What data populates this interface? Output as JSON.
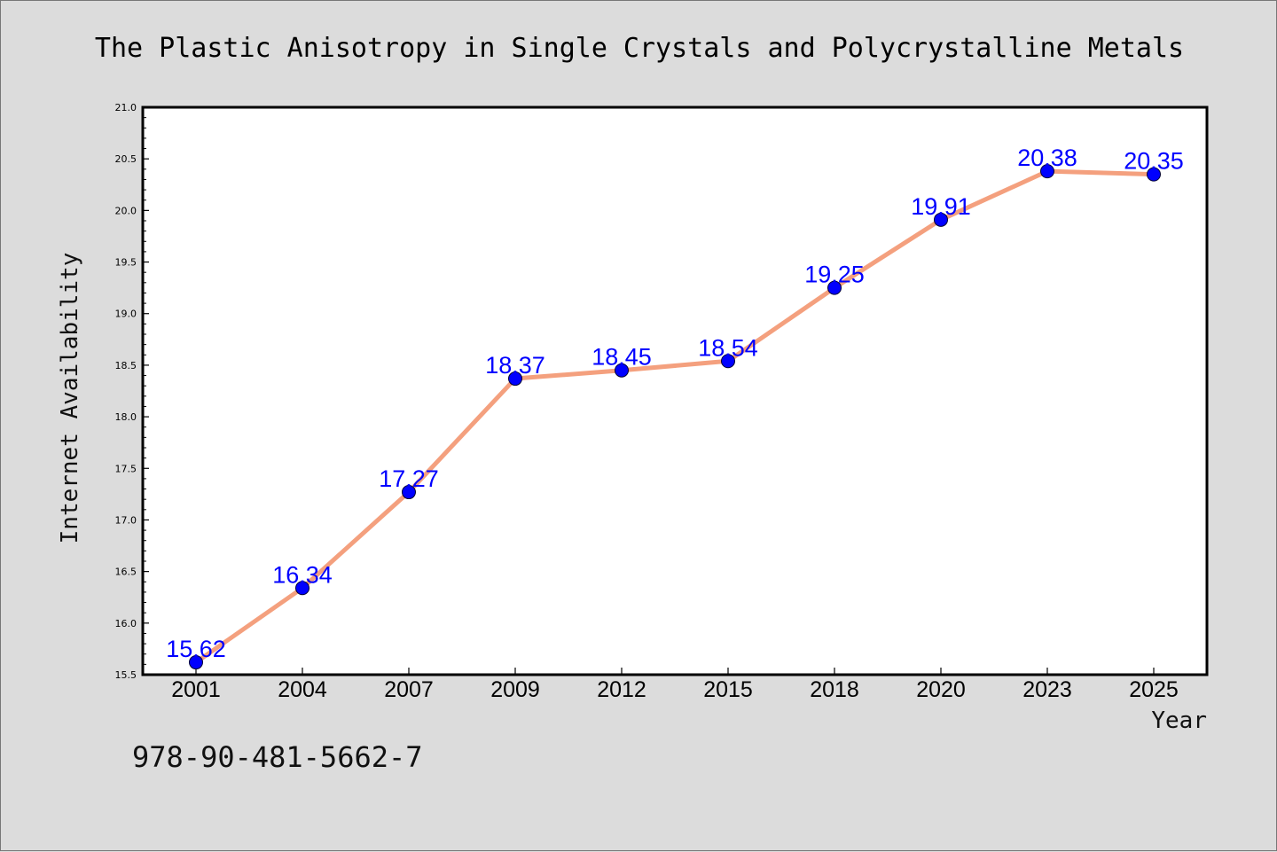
{
  "chart_data": {
    "type": "line",
    "title": "The Plastic Anisotropy in Single Crystals and Polycrystalline Metals",
    "xlabel": "Year",
    "ylabel": "Internet Availability",
    "categories": [
      "2001",
      "2004",
      "2007",
      "2009",
      "2012",
      "2015",
      "2018",
      "2020",
      "2023",
      "2025"
    ],
    "series": [
      {
        "values": [
          15.62,
          16.34,
          17.27,
          18.37,
          18.45,
          18.54,
          19.25,
          19.91,
          20.38,
          20.35
        ],
        "line_color": "#f4a07e",
        "marker_color": "#0000ff"
      }
    ],
    "data_labels": [
      "15.62",
      "16.34",
      "17.27",
      "18.37",
      "18.45",
      "18.54",
      "19.25",
      "19.91",
      "20.38",
      "20.35"
    ],
    "ylim": [
      15.5,
      21.0
    ],
    "yticks": [
      "15.5",
      "16.0",
      "16.5",
      "17.0",
      "17.5",
      "18.0",
      "18.5",
      "19.0",
      "19.5",
      "20.0",
      "20.5",
      "21.0"
    ],
    "grid": false,
    "legend": "none"
  },
  "annotation": "978-90-481-5662-7",
  "colors": {
    "background": "#dcdcdc",
    "plot_background": "#ffffff",
    "line": "#f4a07e",
    "marker": "#0000ff",
    "data_label": "#0000ff"
  }
}
